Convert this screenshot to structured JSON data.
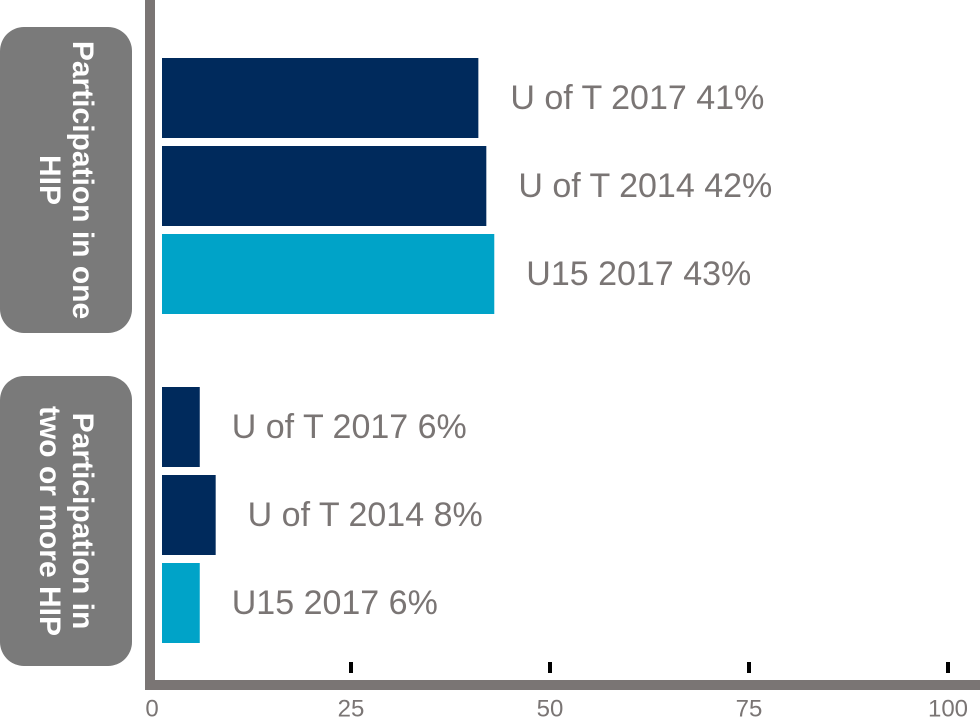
{
  "chart_data": {
    "type": "bar",
    "orientation": "horizontal",
    "categories": [
      "Participation in one HIP",
      "Participation in two or more HIP"
    ],
    "series": [
      {
        "name": "U of T 2017",
        "color": "#002a5c",
        "values": [
          41,
          6
        ],
        "value_labels": [
          "41%",
          "6%"
        ]
      },
      {
        "name": "U of T 2014",
        "color": "#002a5c",
        "values": [
          42,
          8
        ],
        "value_labels": [
          "42%",
          "8%"
        ]
      },
      {
        "name": "U15 2017",
        "color": "#00a3c8",
        "values": [
          43,
          6
        ],
        "value_labels": [
          "43%",
          "6%"
        ]
      }
    ],
    "xlim": [
      0,
      100
    ],
    "xticks": [
      0,
      25,
      50,
      75,
      100
    ]
  }
}
